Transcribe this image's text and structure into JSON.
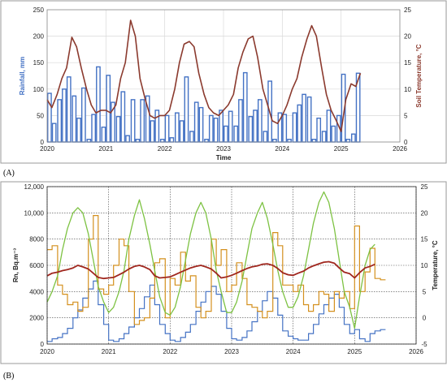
{
  "panels": {
    "a_label": "(A)",
    "b_label": "(B)"
  },
  "chart_data": [
    {
      "type": "bar",
      "panel_label": "(A)",
      "xlabel": "Time",
      "ylabel_left": "Rainfall, mm",
      "ylabel_right": "Soil Temperature, °C",
      "x_ticks": [
        "2020",
        "2021",
        "2022",
        "2023",
        "2024",
        "2025",
        "2026"
      ],
      "x_range": [
        2020.0,
        2026.0
      ],
      "y_left_ticks": [
        "0",
        "50",
        "100",
        "150",
        "200",
        "250"
      ],
      "y_left_range": [
        0,
        250
      ],
      "y_right_ticks": [
        "0",
        "5",
        "10",
        "15",
        "20",
        "25"
      ],
      "y_right_range": [
        0,
        25
      ],
      "grid": "both",
      "colors": {
        "bars": "#4472c4",
        "bar_fill": "#ffffff",
        "temperature": "#8b3a2e"
      },
      "series": [
        {
          "name": "Rainfall",
          "kind": "bar",
          "axis": "left",
          "x": [
            2020.04,
            2020.12,
            2020.21,
            2020.29,
            2020.37,
            2020.46,
            2020.54,
            2020.62,
            2020.71,
            2020.79,
            2020.87,
            2020.96,
            2021.04,
            2021.12,
            2021.21,
            2021.29,
            2021.37,
            2021.46,
            2021.54,
            2021.62,
            2021.71,
            2021.79,
            2021.87,
            2021.96,
            2022.04,
            2022.12,
            2022.21,
            2022.29,
            2022.37,
            2022.46,
            2022.54,
            2022.62,
            2022.71,
            2022.79,
            2022.87,
            2022.96,
            2023.04,
            2023.12,
            2023.21,
            2023.29,
            2023.37,
            2023.46,
            2023.54,
            2023.62,
            2023.71,
            2023.79,
            2023.87,
            2023.96,
            2024.04,
            2024.12,
            2024.21,
            2024.29,
            2024.37,
            2024.46,
            2024.54,
            2024.62,
            2024.71,
            2024.79,
            2024.87,
            2024.96,
            2025.04,
            2025.12,
            2025.21,
            2025.29
          ],
          "values": [
            92,
            35,
            80,
            100,
            123,
            87,
            45,
            102,
            5,
            52,
            142,
            28,
            126,
            75,
            48,
            95,
            12,
            80,
            5,
            80,
            87,
            40,
            60,
            5,
            50,
            8,
            55,
            40,
            123,
            20,
            75,
            65,
            5,
            50,
            45,
            60,
            30,
            58,
            30,
            80,
            131,
            48,
            60,
            80,
            20,
            115,
            5,
            55,
            52,
            5,
            55,
            70,
            90,
            85,
            5,
            45,
            20,
            60,
            30,
            50,
            128,
            5,
            15,
            130
          ]
        },
        {
          "name": "Soil Temperature",
          "kind": "line",
          "axis": "right",
          "x": [
            2020.0,
            2020.08,
            2020.17,
            2020.25,
            2020.33,
            2020.42,
            2020.5,
            2020.58,
            2020.67,
            2020.75,
            2020.83,
            2020.92,
            2021.0,
            2021.08,
            2021.17,
            2021.25,
            2021.33,
            2021.42,
            2021.5,
            2021.58,
            2021.67,
            2021.75,
            2021.83,
            2021.92,
            2022.0,
            2022.08,
            2022.17,
            2022.25,
            2022.33,
            2022.42,
            2022.5,
            2022.58,
            2022.67,
            2022.75,
            2022.83,
            2022.92,
            2023.0,
            2023.08,
            2023.17,
            2023.25,
            2023.33,
            2023.42,
            2023.5,
            2023.58,
            2023.67,
            2023.75,
            2023.83,
            2023.92,
            2024.0,
            2024.08,
            2024.17,
            2024.25,
            2024.33,
            2024.42,
            2024.5,
            2024.58,
            2024.67,
            2024.75,
            2024.83,
            2024.92,
            2025.0,
            2025.08,
            2025.17,
            2025.25,
            2025.33
          ],
          "values": [
            8,
            6.5,
            9,
            12,
            14,
            19.8,
            18,
            14,
            10,
            7,
            5.5,
            6,
            6,
            5.5,
            7,
            12,
            15,
            23,
            20,
            12,
            8,
            5,
            4.5,
            5,
            5,
            6,
            10,
            15,
            18.5,
            19,
            18,
            13,
            9,
            6.5,
            5.5,
            5,
            6,
            7,
            9,
            14,
            17,
            19.5,
            20,
            16,
            10,
            7,
            4,
            3.5,
            5,
            7,
            10,
            12,
            16,
            19.5,
            22,
            20,
            14,
            9,
            6,
            4,
            2,
            8,
            11,
            10.5,
            13
          ]
        }
      ]
    },
    {
      "type": "line",
      "panel_label": "(B)",
      "xlabel": "",
      "ylabel_left": "Rn, Bq.m⁻³",
      "ylabel_right": "Temperature, °C",
      "x_ticks": [
        "2020",
        "2021",
        "2022",
        "2023",
        "2024",
        "2025",
        "2026"
      ],
      "x_range": [
        2020.0,
        2026.0
      ],
      "y_left_ticks": [
        "0",
        "2000",
        "4000",
        "6000",
        "8000",
        "10,000",
        "12,000"
      ],
      "y_left_range": [
        0,
        12000
      ],
      "y_right_ticks": [
        "-5",
        "0",
        "5",
        "10",
        "15",
        "20",
        "25"
      ],
      "y_right_range": [
        -5,
        25
      ],
      "grid": "both",
      "colors": {
        "blue": "#4472c4",
        "orange": "#d4901e",
        "green": "#7dc242",
        "red": "#a0271e"
      },
      "series": [
        {
          "name": "Rn (blue)",
          "kind": "step",
          "axis": "left",
          "x": [
            2020.0,
            2020.08,
            2020.17,
            2020.25,
            2020.33,
            2020.42,
            2020.5,
            2020.58,
            2020.67,
            2020.75,
            2020.83,
            2020.92,
            2021.0,
            2021.08,
            2021.17,
            2021.25,
            2021.33,
            2021.42,
            2021.5,
            2021.58,
            2021.67,
            2021.75,
            2021.83,
            2021.92,
            2022.0,
            2022.08,
            2022.17,
            2022.25,
            2022.33,
            2022.42,
            2022.5,
            2022.58,
            2022.67,
            2022.75,
            2022.83,
            2022.92,
            2023.0,
            2023.08,
            2023.17,
            2023.25,
            2023.33,
            2023.42,
            2023.5,
            2023.58,
            2023.67,
            2023.75,
            2023.83,
            2023.92,
            2024.0,
            2024.08,
            2024.17,
            2024.25,
            2024.33,
            2024.42,
            2024.5,
            2024.58,
            2024.67,
            2024.75,
            2024.83,
            2024.92,
            2025.0,
            2025.08,
            2025.17,
            2025.25,
            2025.33,
            2025.42
          ],
          "values": [
            200,
            400,
            500,
            800,
            1200,
            2000,
            2600,
            3500,
            4200,
            4800,
            3000,
            1500,
            300,
            200,
            400,
            800,
            1300,
            2000,
            2700,
            3600,
            4500,
            3000,
            1500,
            800,
            300,
            200,
            500,
            900,
            1500,
            2500,
            3200,
            4000,
            4400,
            3800,
            2500,
            1200,
            400,
            300,
            500,
            1000,
            1700,
            2500,
            3300,
            4000,
            3500,
            2200,
            1000,
            600,
            400,
            300,
            300,
            800,
            1500,
            2300,
            3000,
            3500,
            3800,
            2800,
            1500,
            800,
            1100,
            400,
            200,
            800,
            1000,
            1100
          ]
        },
        {
          "name": "Rn (orange)",
          "kind": "step",
          "axis": "left",
          "x": [
            2020.0,
            2020.08,
            2020.17,
            2020.25,
            2020.33,
            2020.42,
            2020.5,
            2020.58,
            2020.67,
            2020.75,
            2020.83,
            2020.92,
            2021.0,
            2021.08,
            2021.17,
            2021.25,
            2021.33,
            2021.42,
            2021.5,
            2021.58,
            2021.67,
            2021.75,
            2021.83,
            2021.92,
            2022.0,
            2022.08,
            2022.17,
            2022.25,
            2022.33,
            2022.42,
            2022.5,
            2022.58,
            2022.67,
            2022.75,
            2022.83,
            2022.92,
            2023.0,
            2023.08,
            2023.17,
            2023.25,
            2023.33,
            2023.42,
            2023.5,
            2023.58,
            2023.67,
            2023.75,
            2023.83,
            2023.92,
            2024.0,
            2024.08,
            2024.17,
            2024.25,
            2024.33,
            2024.42,
            2024.5,
            2024.58,
            2024.67,
            2024.75,
            2024.83,
            2024.92,
            2025.0,
            2025.08,
            2025.17,
            2025.25,
            2025.33,
            2025.42
          ],
          "values": [
            7200,
            7500,
            4500,
            3800,
            3000,
            3200,
            2500,
            2800,
            8000,
            9800,
            4200,
            3800,
            4500,
            6000,
            8000,
            7500,
            4000,
            1500,
            1800,
            2000,
            3500,
            6200,
            6500,
            2000,
            5000,
            4500,
            7000,
            4800,
            5200,
            2800,
            2000,
            2500,
            8000,
            6000,
            7200,
            4000,
            4500,
            6200,
            5000,
            3000,
            2800,
            2500,
            2000,
            2500,
            8500,
            7500,
            4500,
            4500,
            4000,
            4500,
            3000,
            2500,
            3000,
            4000,
            3800,
            2500,
            4000,
            3500,
            4000,
            2700,
            9000,
            4000,
            5500,
            7300,
            5000,
            4900
          ]
        },
        {
          "name": "Temperature (green)",
          "kind": "line",
          "axis": "right",
          "x": [
            2020.0,
            2020.08,
            2020.17,
            2020.25,
            2020.33,
            2020.42,
            2020.5,
            2020.58,
            2020.67,
            2020.75,
            2020.83,
            2020.92,
            2021.0,
            2021.08,
            2021.17,
            2021.25,
            2021.33,
            2021.42,
            2021.5,
            2021.58,
            2021.67,
            2021.75,
            2021.83,
            2021.92,
            2022.0,
            2022.08,
            2022.17,
            2022.25,
            2022.33,
            2022.42,
            2022.5,
            2022.58,
            2022.67,
            2022.75,
            2022.83,
            2022.92,
            2023.0,
            2023.08,
            2023.17,
            2023.25,
            2023.33,
            2023.42,
            2023.5,
            2023.58,
            2023.67,
            2023.75,
            2023.83,
            2023.92,
            2024.0,
            2024.08,
            2024.17,
            2024.25,
            2024.33,
            2024.42,
            2024.5,
            2024.58,
            2024.67,
            2024.75,
            2024.83,
            2024.92,
            2025.0,
            2025.08,
            2025.17,
            2025.25,
            2025.33
          ],
          "values": [
            3,
            5,
            8,
            13,
            17,
            20,
            21,
            20,
            16,
            11,
            6,
            3,
            1,
            2,
            5,
            9,
            15,
            19.5,
            22.5,
            19,
            14,
            9,
            4,
            1,
            0.5,
            2,
            6,
            11,
            16,
            20,
            22,
            20,
            15,
            9,
            5,
            1,
            1,
            3,
            7,
            12,
            17,
            20,
            22,
            19,
            14,
            9,
            5,
            2,
            2,
            4,
            8,
            13,
            18,
            22,
            24,
            22,
            17,
            11,
            5,
            2,
            -2,
            4,
            10,
            13,
            14
          ]
        },
        {
          "name": "Soil temperature (red)",
          "kind": "line",
          "axis": "right",
          "x": [
            2020.0,
            2020.08,
            2020.17,
            2020.25,
            2020.33,
            2020.42,
            2020.5,
            2020.58,
            2020.67,
            2020.75,
            2020.83,
            2020.92,
            2021.0,
            2021.08,
            2021.17,
            2021.25,
            2021.33,
            2021.42,
            2021.5,
            2021.58,
            2021.67,
            2021.75,
            2021.83,
            2021.92,
            2022.0,
            2022.08,
            2022.17,
            2022.25,
            2022.33,
            2022.42,
            2022.5,
            2022.58,
            2022.67,
            2022.75,
            2022.83,
            2022.92,
            2023.0,
            2023.08,
            2023.17,
            2023.25,
            2023.33,
            2023.42,
            2023.5,
            2023.58,
            2023.67,
            2023.75,
            2023.83,
            2023.92,
            2024.0,
            2024.08,
            2024.17,
            2024.25,
            2024.33,
            2024.42,
            2024.5,
            2024.58,
            2024.67,
            2024.75,
            2024.83,
            2024.92,
            2025.0,
            2025.08,
            2025.17,
            2025.25,
            2025.33
          ],
          "values": [
            8,
            8.5,
            8.7,
            9,
            9.2,
            9.5,
            10,
            9.7,
            9.3,
            8.5,
            7.7,
            7.5,
            7.6,
            7.7,
            8.2,
            8.7,
            9.3,
            9.8,
            10,
            9.7,
            9.2,
            8,
            7.6,
            7.7,
            7.8,
            8.2,
            8.7,
            9.1,
            9.5,
            9.8,
            10,
            9.7,
            9.3,
            8.5,
            7.6,
            7.8,
            8.1,
            8.5,
            9,
            9.4,
            9.7,
            9.9,
            10.2,
            10.3,
            10,
            9.4,
            8.6,
            8.2,
            8.1,
            8.5,
            8.9,
            9.5,
            9.9,
            10.3,
            10.6,
            10.7,
            10.4,
            9.5,
            8.7,
            8.4,
            7.6,
            8.6,
            9.5,
            9.8,
            10.2
          ]
        }
      ]
    }
  ]
}
